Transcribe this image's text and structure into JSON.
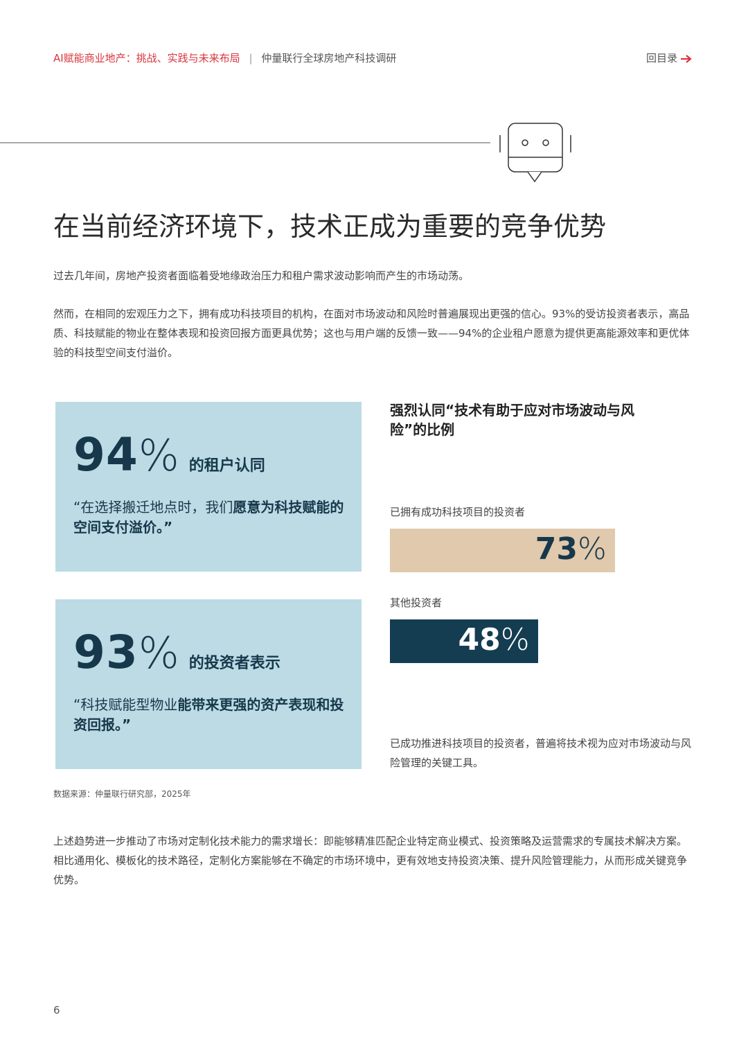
{
  "header": {
    "report_title": "AI赋能商业地产：挑战、实践与未来布局",
    "separator": "|",
    "subtitle": "仲量联行全球房地产科技调研",
    "back_link": "回目录"
  },
  "title": "在当前经济环境下，技术正成为重要的竞争优势",
  "intro": [
    "过去几年间，房地产投资者面临着受地缘政治压力和租户需求波动影响而产生的市场动荡。",
    "然而，在相同的宏观压力之下，拥有成功科技项目的机构，在面对市场波动和风险时普遍展现出更强的信心。93%的受访投资者表示，高品质、科技赋能的物业在整体表现和投资回报方面更具优势；这也与用户端的反馈一致——94%的企业租户愿意为提供更高能源效率和更优体验的科技型空间支付溢价。"
  ],
  "stats": [
    {
      "value": 94,
      "unit": "%",
      "label": "的租户认同",
      "quote": [
        "“在选择搬迁地点时，我们",
        "愿意为科技赋能的空间支付溢价。”"
      ]
    },
    {
      "value": 93,
      "unit": "%",
      "label": "的投资者表示",
      "quote": [
        "“科技赋能型物业",
        "能带来更强的资产表现和投资回报。”"
      ]
    }
  ],
  "chart_data": {
    "type": "bar",
    "title": "强烈认同“技术有助于应对市场波动与风险”的比例",
    "categories": [
      "已拥有成功科技项目的投资者",
      "其他投资者"
    ],
    "values": [
      73,
      48
    ],
    "unit": "%",
    "colors": [
      "#e0c9ac",
      "#143d52"
    ],
    "note": "已成功推进科技项目的投资者，普遍将技术视为应对市场波动与风险管理的关键工具。"
  },
  "source": "数据来源：仲量联行研究部，2025年",
  "body": "上述趋势进一步推动了市场对定制化技术能力的需求增长：即能够精准匹配企业特定商业模式、投资策略及运营需求的专属技术解决方案。相比通用化、模板化的技术路径，定制化方案能够在不确定的市场环境中，更有效地支持投资决策、提升风险管理能力，从而形成关键竞争优势。",
  "page_number": 6
}
